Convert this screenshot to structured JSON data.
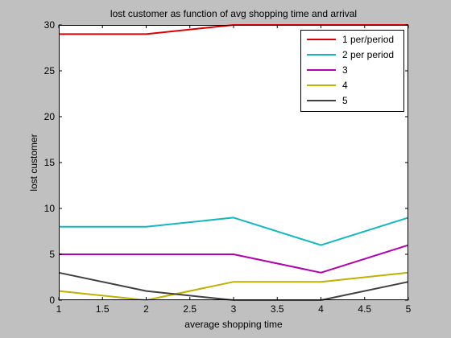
{
  "chart_data": {
    "type": "line",
    "title": "lost customer as function of avg shopping time and arrival",
    "xlabel": "average shopping time",
    "ylabel": "lost customer",
    "xlim": [
      1,
      5
    ],
    "ylim": [
      0,
      30
    ],
    "x_ticks": [
      "1",
      "1.5",
      "2",
      "2.5",
      "3",
      "3.5",
      "4",
      "4.5",
      "5"
    ],
    "y_ticks": [
      "0",
      "5",
      "10",
      "15",
      "20",
      "25",
      "30"
    ],
    "grid": false,
    "legend_position": "top-right",
    "x": [
      1,
      2,
      3,
      4,
      5
    ],
    "series": [
      {
        "name": "1 per/period",
        "color": "#dd0000",
        "values": [
          29,
          29,
          30,
          30,
          30
        ]
      },
      {
        "name": "2 per period",
        "color": "#11b8c0",
        "values": [
          8,
          8,
          9,
          6,
          9
        ]
      },
      {
        "name": "3",
        "color": "#b000b0",
        "values": [
          5,
          5,
          5,
          3,
          6
        ]
      },
      {
        "name": "4",
        "color": "#c0b000",
        "values": [
          1,
          0,
          2,
          2,
          3
        ]
      },
      {
        "name": "5",
        "color": "#404040",
        "values": [
          3,
          1,
          0,
          0,
          2
        ]
      }
    ]
  }
}
